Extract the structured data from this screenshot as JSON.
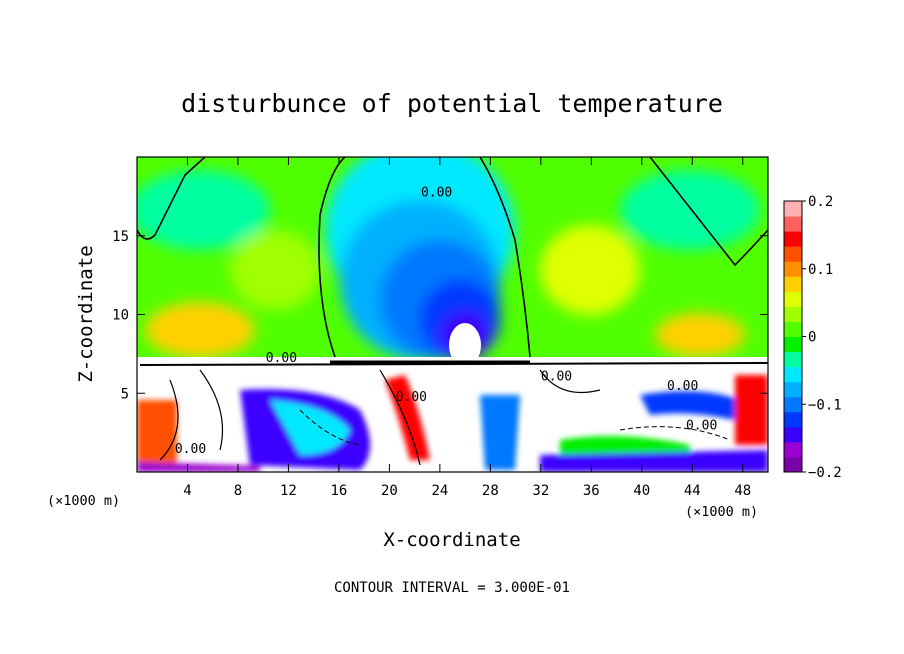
{
  "chart_data": {
    "type": "heatmap",
    "title": "disturbunce of potential temperature",
    "xlabel": "X-coordinate",
    "ylabel": "Z-coordinate",
    "x_unit": "(×1000 m)",
    "x_unit_right": "(×1000 m)",
    "xlim": [
      0,
      50
    ],
    "ylim": [
      0,
      20
    ],
    "x_ticks": [
      4,
      8,
      12,
      16,
      20,
      24,
      28,
      32,
      36,
      40,
      44,
      48
    ],
    "y_ticks": [
      5,
      10,
      15
    ],
    "colorbar": {
      "range": [
        -0.2,
        0.2
      ],
      "tick_labels": [
        "0.2",
        "0.1",
        "0",
        "−0.1",
        "−0.2"
      ],
      "tick_values": [
        0.2,
        0.1,
        0,
        -0.1,
        -0.2
      ],
      "colors": [
        "#7a00a8",
        "#9a00d0",
        "#3a00ff",
        "#0038ff",
        "#0078ff",
        "#00b0ff",
        "#00e8ff",
        "#00ffa0",
        "#00f000",
        "#50ff00",
        "#a0ff00",
        "#e0ff00",
        "#ffd000",
        "#ff9000",
        "#ff5000",
        "#ff0000",
        "#ff6060",
        "#ffb0b0"
      ]
    },
    "contour_labels": [
      {
        "text": "0.00",
        "x": 22.5,
        "y": 17.5
      },
      {
        "text": "0.00",
        "x": 10.2,
        "y": 7.0
      },
      {
        "text": "0.00",
        "x": 32.0,
        "y": 5.8
      },
      {
        "text": "0.00",
        "x": 42.0,
        "y": 5.2
      },
      {
        "text": "0.00",
        "x": 20.5,
        "y": 4.5
      },
      {
        "text": "0.00",
        "x": 43.5,
        "y": 2.7
      },
      {
        "text": "0.00",
        "x": 3.0,
        "y": 1.2
      }
    ],
    "contour_interval_label": "CONTOUR INTERVAL = 3.000E-01"
  }
}
